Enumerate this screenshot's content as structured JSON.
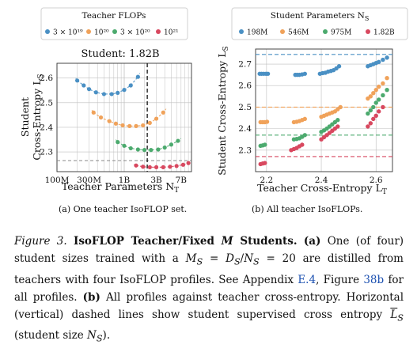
{
  "colors": {
    "blue": "#4a90c4",
    "orange": "#f0a25a",
    "green": "#4caa6e",
    "red": "#d8485f",
    "vline": "#111111",
    "grid": "#bfbfbf"
  },
  "left": {
    "legend_title": "Teacher FLOPs",
    "legend_labels": [
      "3 × 10¹⁹",
      "10²⁰",
      "3 × 10²⁰",
      "10²¹"
    ],
    "legend_placement": "above plot",
    "title": "Student: 1.82B",
    "ylabel_line1": "Student",
    "ylabel_line2": "Cross-Entropy L",
    "ylabel_sub": "S",
    "xlabel": "Teacher Parameters N",
    "xlabel_sub": "T",
    "xticks": [
      "100M",
      "300M",
      "1B",
      "3B",
      "7B"
    ],
    "yticks": [
      "2.3",
      "2.4",
      "2.5",
      "2.6"
    ],
    "caption": "(a) One teacher IsoFLOP set."
  },
  "right": {
    "legend_title": "Student Parameters N",
    "legend_title_sub": "S",
    "legend_labels": [
      "198M",
      "546M",
      "975M",
      "1.82B"
    ],
    "legend_placement": "above plot",
    "ylabel": "Student Cross-Entropy L",
    "ylabel_sub": "S",
    "xlabel": "Teacher Cross-Entropy L",
    "xlabel_sub": "T",
    "xticks": [
      "2.2",
      "2.4",
      "2.6"
    ],
    "yticks": [
      "2.3",
      "2.4",
      "2.5",
      "2.6",
      "2.7"
    ],
    "caption": "(b) All teacher IsoFLOPs."
  },
  "chart_data": [
    {
      "type": "scatter",
      "title": "Student: 1.82B",
      "xlabel": "Teacher Parameters N_T",
      "ylabel": "Student Cross-Entropy L_S",
      "xscale": "log",
      "xlim": [
        100000000,
        10000000000
      ],
      "ylim": [
        2.22,
        2.66
      ],
      "grid": true,
      "legend": "top",
      "vline_x": 2200000000,
      "hline_y": 2.265,
      "series": [
        {
          "name": "3 × 10¹⁹",
          "color": "#4a90c4",
          "x": [
            200000000,
            250000000,
            300000000,
            380000000,
            500000000,
            650000000,
            800000000,
            1000000000,
            1250000000,
            1600000000
          ],
          "y": [
            2.59,
            2.57,
            2.555,
            2.542,
            2.535,
            2.535,
            2.54,
            2.552,
            2.57,
            2.605
          ],
          "fit_x": [
            190000000,
            1700000000
          ],
          "fit": [
            2.6,
            2.62
          ]
        },
        {
          "name": "10²⁰",
          "color": "#f0a25a",
          "x": [
            350000000,
            450000000,
            600000000,
            750000000,
            950000000,
            1200000000,
            1500000000,
            1900000000,
            2400000000,
            3000000000,
            3800000000
          ],
          "y": [
            2.46,
            2.44,
            2.425,
            2.415,
            2.408,
            2.405,
            2.405,
            2.408,
            2.418,
            2.435,
            2.46
          ],
          "fit_x": [
            330000000,
            4200000000
          ],
          "fit": [
            2.47,
            2.475
          ]
        },
        {
          "name": "3 × 10²⁰",
          "color": "#4caa6e",
          "x": [
            800000000,
            1000000000,
            1250000000,
            1600000000,
            2000000000,
            2500000000,
            3200000000,
            4000000000,
            5000000000,
            6300000000
          ],
          "y": [
            2.34,
            2.325,
            2.315,
            2.31,
            2.308,
            2.308,
            2.31,
            2.318,
            2.33,
            2.345
          ],
          "fit_x": [
            750000000,
            7000000000
          ],
          "fit": [
            2.35,
            2.355
          ]
        },
        {
          "name": "10²¹",
          "color": "#d8485f",
          "x": [
            1500000000,
            1900000000,
            2400000000,
            3000000000,
            3800000000,
            4800000000,
            6000000000,
            7500000000,
            9000000000
          ],
          "y": [
            2.245,
            2.24,
            2.238,
            2.238,
            2.238,
            2.24,
            2.243,
            2.248,
            2.255
          ],
          "fit_x": [
            1400000000,
            9500000000
          ],
          "fit": [
            2.25,
            2.26
          ]
        }
      ]
    },
    {
      "type": "scatter",
      "xlabel": "Teacher Cross-Entropy L_T",
      "ylabel": "Student Cross-Entropy L_S",
      "xlim": [
        2.16,
        2.66
      ],
      "ylim": [
        2.2,
        2.77
      ],
      "grid": true,
      "legend": "top",
      "hlines": [
        {
          "y": 2.745,
          "color": "#4a90c4"
        },
        {
          "y": 2.5,
          "color": "#f0a25a"
        },
        {
          "y": 2.37,
          "color": "#4caa6e"
        },
        {
          "y": 2.27,
          "color": "#d8485f"
        }
      ],
      "series": [
        {
          "name": "198M",
          "color": "#4a90c4",
          "x": [
            2.175,
            2.182,
            2.19,
            2.198,
            2.205,
            2.305,
            2.312,
            2.32,
            2.33,
            2.34,
            2.395,
            2.405,
            2.415,
            2.425,
            2.435,
            2.445,
            2.455,
            2.465,
            2.57,
            2.58,
            2.59,
            2.6,
            2.61,
            2.625,
            2.64
          ],
          "y": [
            2.655,
            2.655,
            2.655,
            2.655,
            2.655,
            2.65,
            2.65,
            2.65,
            2.652,
            2.655,
            2.655,
            2.658,
            2.66,
            2.665,
            2.668,
            2.672,
            2.68,
            2.69,
            2.69,
            2.695,
            2.7,
            2.705,
            2.71,
            2.72,
            2.73
          ]
        },
        {
          "name": "546M",
          "color": "#f0a25a",
          "x": [
            2.178,
            2.186,
            2.194,
            2.202,
            2.3,
            2.31,
            2.32,
            2.33,
            2.34,
            2.4,
            2.41,
            2.42,
            2.43,
            2.44,
            2.45,
            2.46,
            2.47,
            2.57,
            2.58,
            2.59,
            2.6,
            2.61,
            2.625,
            2.64
          ],
          "y": [
            2.43,
            2.43,
            2.43,
            2.432,
            2.43,
            2.432,
            2.435,
            2.44,
            2.445,
            2.455,
            2.46,
            2.465,
            2.47,
            2.475,
            2.48,
            2.49,
            2.5,
            2.54,
            2.55,
            2.565,
            2.58,
            2.595,
            2.61,
            2.635
          ]
        },
        {
          "name": "975M",
          "color": "#4caa6e",
          "x": [
            2.178,
            2.186,
            2.194,
            2.3,
            2.31,
            2.32,
            2.33,
            2.34,
            2.4,
            2.41,
            2.42,
            2.43,
            2.44,
            2.45,
            2.46,
            2.57,
            2.58,
            2.59,
            2.6,
            2.61,
            2.625,
            2.64
          ],
          "y": [
            2.32,
            2.322,
            2.325,
            2.35,
            2.352,
            2.355,
            2.362,
            2.37,
            2.385,
            2.392,
            2.4,
            2.41,
            2.42,
            2.43,
            2.44,
            2.47,
            2.485,
            2.5,
            2.52,
            2.535,
            2.555,
            2.58
          ]
        },
        {
          "name": "1.82B",
          "color": "#d8485f",
          "x": [
            2.178,
            2.186,
            2.194,
            2.29,
            2.3,
            2.31,
            2.32,
            2.33,
            2.4,
            2.41,
            2.42,
            2.43,
            2.44,
            2.45,
            2.46,
            2.57,
            2.58,
            2.59,
            2.6,
            2.61,
            2.625
          ],
          "y": [
            2.235,
            2.238,
            2.24,
            2.3,
            2.305,
            2.31,
            2.318,
            2.325,
            2.35,
            2.36,
            2.37,
            2.38,
            2.39,
            2.4,
            2.41,
            2.41,
            2.425,
            2.445,
            2.46,
            2.48,
            2.5
          ]
        }
      ]
    }
  ],
  "caption": {
    "fig": "Figure 3.",
    "title": "IsoFLOP Teacher/Fixed",
    "title_m": "M",
    "title_end": "Students.",
    "a_label": "(a)",
    "a_text_1": "One (of four) student sizes trained with a",
    "eq_ms": "M",
    "eq_ms_sub": "S",
    "eq_eq1": " = ",
    "eq_ds": "D",
    "eq_ds_sub": "S",
    "eq_slash": "/",
    "eq_ns": "N",
    "eq_ns_sub": "S",
    "eq_eq2": " = 20",
    "a_text_2": "are distilled from teachers with four IsoFLOP profiles. See Appendix",
    "link_appendix": "E.4",
    "a_text_3": ", Figure",
    "link_figure": "38b",
    "a_text_4": "for all profiles.",
    "b_label": "(b)",
    "b_text_1": "All profiles against teacher cross-entropy. Horizontal (vertical) dashed lines show student supervised cross entropy",
    "b_L": "L",
    "b_L_sub": "S",
    "b_text_2": "(student size",
    "b_N": "N",
    "b_N_sub": "S",
    "b_text_3": ")."
  }
}
